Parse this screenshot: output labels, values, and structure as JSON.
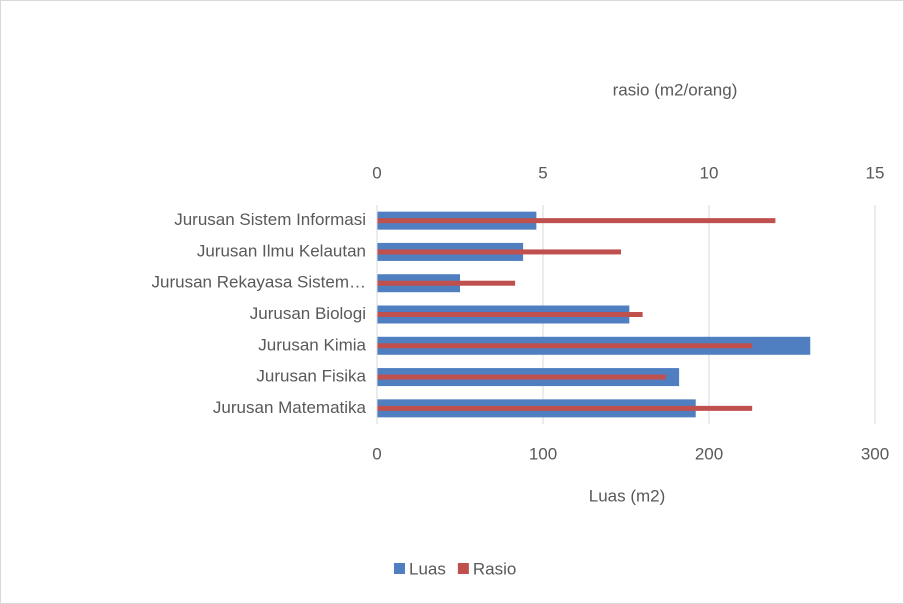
{
  "chart_data": {
    "type": "bar",
    "orientation": "horizontal",
    "categories": [
      "Jurusan Sistem Informasi",
      "Jurusan Ilmu Kelautan",
      "Jurusan Rekayasa Sistem…",
      "Jurusan Biologi",
      "Jurusan Kimia",
      "Jurusan Fisika",
      "Jurusan Matematika"
    ],
    "series": [
      {
        "name": "Luas",
        "color": "#4f7fc0",
        "axis": "x",
        "values": [
          96,
          88,
          50,
          152,
          261,
          182,
          192
        ]
      },
      {
        "name": "Rasio",
        "color": "#c0504d",
        "axis": "x2",
        "values": [
          12.0,
          7.35,
          4.16,
          8.0,
          11.3,
          8.7,
          11.3
        ]
      }
    ],
    "xlabel": "Luas (m2)",
    "x2label": "rasio (m2/orang)",
    "xlim": [
      0,
      300
    ],
    "xticks": [
      0,
      100,
      200,
      300
    ],
    "x2lim": [
      0,
      15
    ],
    "x2ticks": [
      0,
      5,
      10,
      15
    ],
    "grid": true,
    "legend": "bottom"
  }
}
